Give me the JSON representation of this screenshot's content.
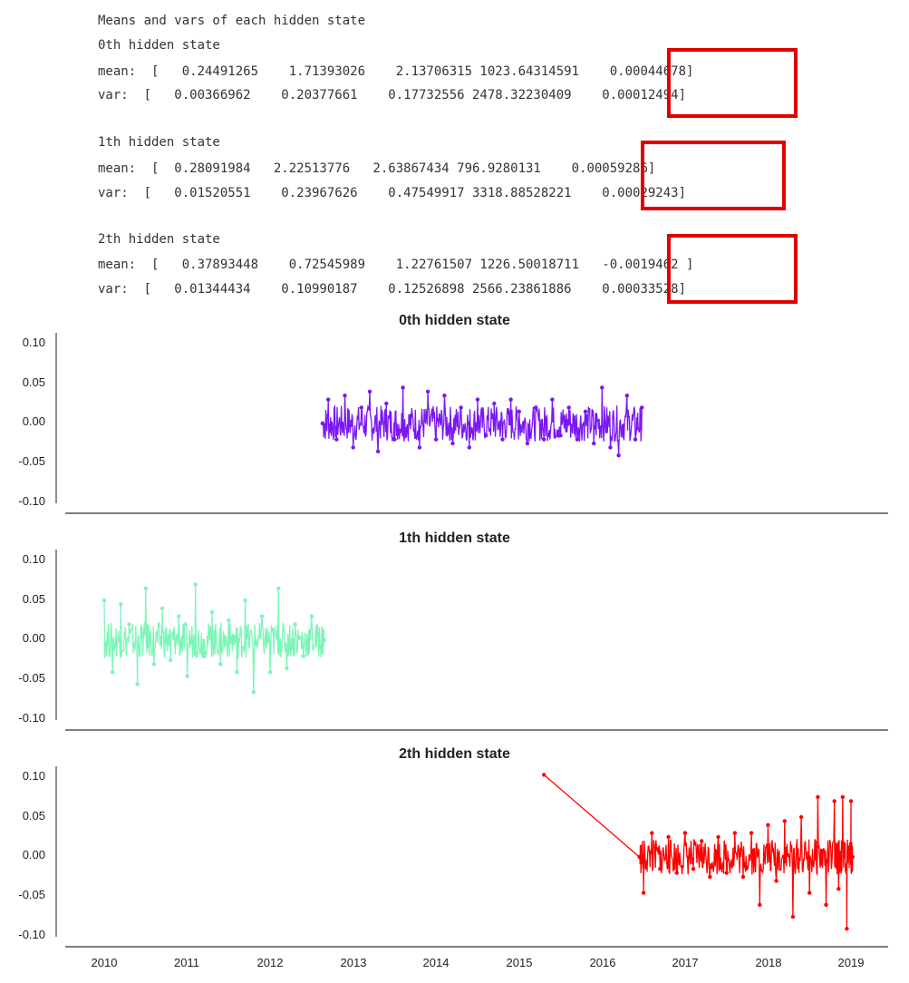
{
  "console": {
    "header": "Means and vars of each hidden state",
    "states": [
      {
        "title": "0th hidden state",
        "mean": "mean:  [   0.24491265    1.71393026    2.13706315 1023.64314591    0.00044678]",
        "var": "var:  [   0.00366962    0.20377661    0.17732556 2478.32230409    0.00012494]"
      },
      {
        "title": "1th hidden state",
        "mean": "mean:  [  0.28091984   2.22513776   2.63867434 796.9280131    0.00059286]",
        "var": "var:  [   0.01520551    0.23967626    0.47549917 3318.88528221    0.00029243]"
      },
      {
        "title": "2th hidden state",
        "mean": "mean:  [   0.37893448    0.72545989    1.22761507 1226.50018711   -0.0019462 ]",
        "var": "var:  [   0.01344434    0.10990187    0.12526898 2566.23861886    0.00033528]"
      }
    ]
  },
  "chart_data": {
    "type": "line",
    "y_ticks": [
      "0.10",
      "0.05",
      "0.00",
      "-0.05",
      "-0.10"
    ],
    "x_ticks": [
      "2010",
      "2011",
      "2012",
      "2013",
      "2014",
      "2015",
      "2016",
      "2017",
      "2018",
      "2019"
    ],
    "ylim": [
      -0.1,
      0.1
    ],
    "xlim": [
      2009.6,
      2019.4
    ],
    "highlight_color": "#e00000",
    "panels": [
      {
        "title": "0th hidden state",
        "color": "#7b16f5",
        "x": [
          2012.63,
          2012.7,
          2012.8,
          2012.9,
          2013.0,
          2013.1,
          2013.2,
          2013.3,
          2013.4,
          2013.5,
          2013.6,
          2013.7,
          2013.8,
          2013.9,
          2014.0,
          2014.1,
          2014.2,
          2014.3,
          2014.4,
          2014.5,
          2014.6,
          2014.7,
          2014.8,
          2014.9,
          2015.0,
          2015.1,
          2015.2,
          2015.3,
          2015.4,
          2015.5,
          2015.6,
          2015.7,
          2015.8,
          2015.9,
          2016.0,
          2016.1,
          2016.2,
          2016.3,
          2016.4,
          2016.48
        ],
        "y": [
          0.0,
          0.03,
          -0.02,
          0.035,
          -0.03,
          0.02,
          0.04,
          -0.035,
          0.025,
          -0.02,
          0.045,
          0.01,
          -0.03,
          0.04,
          -0.02,
          0.035,
          -0.025,
          0.02,
          -0.03,
          0.03,
          -0.015,
          0.025,
          -0.02,
          0.03,
          0.015,
          -0.025,
          0.02,
          -0.02,
          0.03,
          -0.015,
          0.02,
          -0.02,
          0.015,
          -0.025,
          0.045,
          -0.03,
          -0.04,
          0.035,
          -0.02,
          0.02
        ]
      },
      {
        "title": "1th hidden state",
        "color": "#7ef5b8",
        "x": [
          2010.0,
          2010.1,
          2010.2,
          2010.3,
          2010.4,
          2010.5,
          2010.6,
          2010.7,
          2010.8,
          2010.9,
          2011.0,
          2011.1,
          2011.2,
          2011.3,
          2011.4,
          2011.5,
          2011.6,
          2011.7,
          2011.8,
          2011.9,
          2012.0,
          2012.1,
          2012.2,
          2012.3,
          2012.4,
          2012.5,
          2012.6,
          2012.65
        ],
        "y": [
          0.05,
          -0.04,
          0.045,
          0.02,
          -0.055,
          0.065,
          -0.03,
          0.04,
          -0.025,
          0.03,
          -0.045,
          0.07,
          -0.02,
          0.035,
          -0.03,
          0.025,
          -0.04,
          0.05,
          -0.065,
          0.03,
          -0.04,
          0.065,
          -0.035,
          0.02,
          -0.02,
          0.03,
          -0.01,
          0.0
        ]
      },
      {
        "title": "2th hidden state",
        "color": "#ff0000",
        "x": [
          2015.3,
          2016.45,
          2016.5,
          2016.6,
          2016.7,
          2016.8,
          2016.9,
          2017.0,
          2017.1,
          2017.2,
          2017.3,
          2017.4,
          2017.5,
          2017.6,
          2017.7,
          2017.8,
          2017.9,
          2018.0,
          2018.1,
          2018.2,
          2018.3,
          2018.4,
          2018.5,
          2018.6,
          2018.7,
          2018.8,
          2018.85,
          2018.9,
          2018.95,
          2019.0,
          2019.02
        ],
        "y": [
          0.103,
          0.0,
          -0.045,
          0.03,
          -0.015,
          0.025,
          -0.02,
          0.03,
          -0.015,
          0.02,
          -0.025,
          0.025,
          -0.02,
          0.03,
          -0.025,
          0.03,
          -0.06,
          0.04,
          -0.03,
          0.045,
          -0.075,
          0.05,
          -0.045,
          0.075,
          -0.06,
          0.07,
          -0.04,
          0.075,
          -0.09,
          0.07,
          0.0
        ]
      }
    ]
  }
}
